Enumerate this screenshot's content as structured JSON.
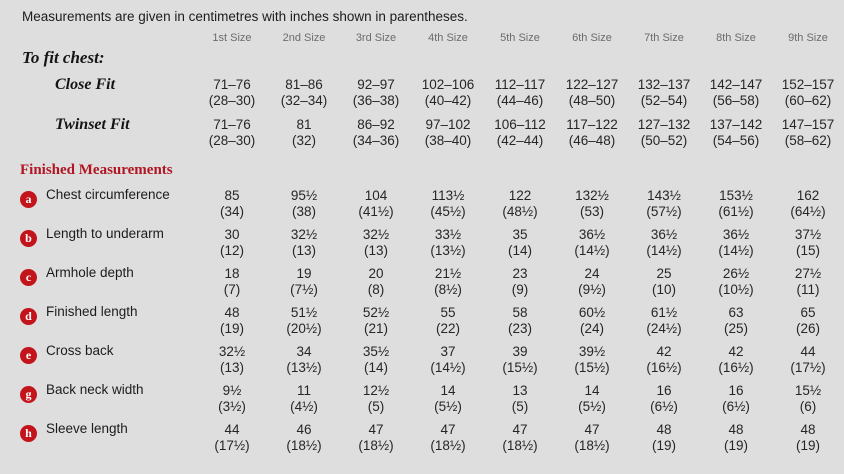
{
  "title": "Measurements are given in centimetres with inches shown in parentheses.",
  "columns": [
    "1st Size",
    "2nd Size",
    "3rd Size",
    "4th Size",
    "5th Size",
    "6th Size",
    "7th Size",
    "8th Size",
    "9th Size"
  ],
  "to_fit_chest": {
    "heading": "To fit chest:",
    "rows": [
      {
        "label": "Close Fit",
        "cm": [
          "71–76",
          "81–86",
          "92–97",
          "102–106",
          "112–117",
          "122–127",
          "132–137",
          "142–147",
          "152–157"
        ],
        "in": [
          "(28–30)",
          "(32–34)",
          "(36–38)",
          "(40–42)",
          "(44–46)",
          "(48–50)",
          "(52–54)",
          "(56–58)",
          "(60–62)"
        ]
      },
      {
        "label": "Twinset Fit",
        "cm": [
          "71–76",
          "81",
          "86–92",
          "97–102",
          "106–112",
          "117–122",
          "127–132",
          "137–142",
          "147–157"
        ],
        "in": [
          "(28–30)",
          "(32)",
          "(34–36)",
          "(38–40)",
          "(42–44)",
          "(46–48)",
          "(50–52)",
          "(54–56)",
          "(58–62)"
        ]
      }
    ]
  },
  "finished_measurements": {
    "heading": "Finished Measurements",
    "rows": [
      {
        "badge": "a",
        "label": "Chest circumference",
        "cm": [
          "85",
          "95½",
          "104",
          "113½",
          "122",
          "132½",
          "143½",
          "153½",
          "162"
        ],
        "in": [
          "(34)",
          "(38)",
          "(41½)",
          "(45½)",
          "(48½)",
          "(53)",
          "(57½)",
          "(61½)",
          "(64½)"
        ]
      },
      {
        "badge": "b",
        "label": "Length to underarm",
        "cm": [
          "30",
          "32½",
          "32½",
          "33½",
          "35",
          "36½",
          "36½",
          "36½",
          "37½"
        ],
        "in": [
          "(12)",
          "(13)",
          "(13)",
          "(13½)",
          "(14)",
          "(14½)",
          "(14½)",
          "(14½)",
          "(15)"
        ]
      },
      {
        "badge": "c",
        "label": "Armhole depth",
        "cm": [
          "18",
          "19",
          "20",
          "21½",
          "23",
          "24",
          "25",
          "26½",
          "27½"
        ],
        "in": [
          "(7)",
          "(7½)",
          "(8)",
          "(8½)",
          "(9)",
          "(9½)",
          "(10)",
          "(10½)",
          "(11)"
        ]
      },
      {
        "badge": "d",
        "label": "Finished length",
        "cm": [
          "48",
          "51½",
          "52½",
          "55",
          "58",
          "60½",
          "61½",
          "63",
          "65"
        ],
        "in": [
          "(19)",
          "(20½)",
          "(21)",
          "(22)",
          "(23)",
          "(24)",
          "(24½)",
          "(25)",
          "(26)"
        ]
      },
      {
        "badge": "e",
        "label": "Cross back",
        "cm": [
          "32½",
          "34",
          "35½",
          "37",
          "39",
          "39½",
          "42",
          "42",
          "44"
        ],
        "in": [
          "(13)",
          "(13½)",
          "(14)",
          "(14½)",
          "(15½)",
          "(15½)",
          "(16½)",
          "(16½)",
          "(17½)"
        ]
      },
      {
        "badge": "g",
        "label": "Back neck width",
        "cm": [
          "9½",
          "11",
          "12½",
          "14",
          "13",
          "14",
          "16",
          "16",
          "15½"
        ],
        "in": [
          "(3½)",
          "(4½)",
          "(5)",
          "(5½)",
          "(5)",
          "(5½)",
          "(6½)",
          "(6½)",
          "(6)"
        ]
      },
      {
        "badge": "h",
        "label": "Sleeve length",
        "cm": [
          "44",
          "46",
          "47",
          "47",
          "47",
          "47",
          "48",
          "48",
          "48"
        ],
        "in": [
          "(17½)",
          "(18½)",
          "(18½)",
          "(18½)",
          "(18½)",
          "(18½)",
          "(19)",
          "(19)",
          "(19)"
        ]
      }
    ]
  },
  "colors": {
    "background": "#dedede",
    "heading_red": "#b01623",
    "badge_red": "#c3141c",
    "column_header_gray": "#6c6c6c",
    "text_ink": "#1c1c1c"
  }
}
